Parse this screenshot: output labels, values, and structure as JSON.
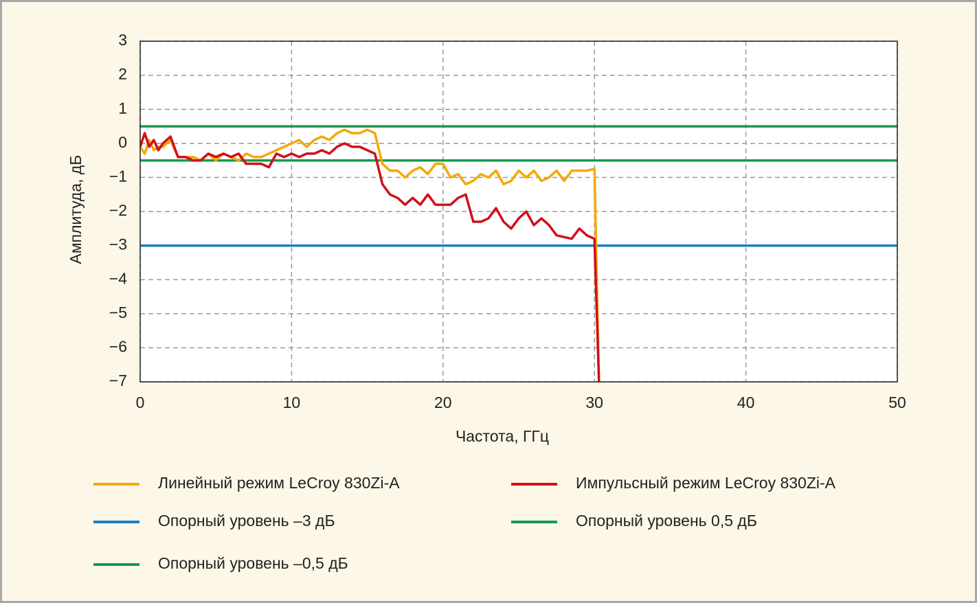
{
  "chart_data": {
    "type": "line",
    "xlabel": "Частота, ГГц",
    "ylabel": "Амплитуда, дБ",
    "xlim": [
      0,
      50
    ],
    "xticks": [
      0,
      10,
      20,
      30,
      40,
      50
    ],
    "ylim": [
      -7,
      3
    ],
    "yticks": [
      3,
      2,
      1,
      0,
      {
        "value": -1,
        "label": "−1"
      },
      {
        "value": -2,
        "label": "−2"
      },
      {
        "value": -3,
        "label": "−3"
      },
      {
        "value": -4,
        "label": "−4"
      },
      {
        "value": -5,
        "label": "−5"
      },
      {
        "value": -6,
        "label": "−6"
      },
      {
        "value": -7,
        "label": "−7"
      }
    ],
    "grid": true,
    "series": [
      {
        "name": "Линейный режим LeCroy 830Zi-A",
        "color": "#f5a800",
        "x": [
          0,
          0.3,
          0.6,
          0.9,
          1.2,
          1.5,
          2,
          2.5,
          3,
          3.5,
          4,
          4.5,
          5,
          5.5,
          6,
          6.5,
          7,
          7.5,
          8,
          8.5,
          9,
          9.5,
          10,
          10.5,
          11,
          11.5,
          12,
          12.5,
          13,
          13.5,
          14,
          14.5,
          15,
          15.5,
          16,
          16.5,
          17,
          17.5,
          18,
          18.5,
          19,
          19.5,
          20,
          20.5,
          21,
          21.5,
          22,
          22.5,
          23,
          23.5,
          24,
          24.5,
          25,
          25.5,
          26,
          26.5,
          27,
          27.5,
          28,
          28.5,
          29,
          29.5,
          30,
          30.3
        ],
        "values": [
          -0.1,
          -0.3,
          0.1,
          -0.2,
          -0.1,
          -0.1,
          0.1,
          -0.4,
          -0.4,
          -0.4,
          -0.5,
          -0.3,
          -0.5,
          -0.3,
          -0.4,
          -0.5,
          -0.3,
          -0.4,
          -0.4,
          -0.3,
          -0.2,
          -0.1,
          0,
          0.1,
          -0.1,
          0.1,
          0.2,
          0.1,
          0.3,
          0.4,
          0.3,
          0.3,
          0.4,
          0.3,
          -0.6,
          -0.8,
          -0.8,
          -1,
          -0.8,
          -0.7,
          -0.9,
          -0.6,
          -0.6,
          -1,
          -0.9,
          -1.2,
          -1.1,
          -0.9,
          -1,
          -0.8,
          -1.2,
          -1.1,
          -0.8,
          -1,
          -0.8,
          -1.1,
          -1,
          -0.8,
          -1.1,
          -0.8,
          -0.8,
          -0.8,
          -0.75,
          -7
        ]
      },
      {
        "name": "Импульсный режим LeCroy 830Zi-A",
        "color": "#d0101a",
        "x": [
          0,
          0.3,
          0.6,
          0.9,
          1.2,
          1.5,
          2,
          2.5,
          3,
          3.5,
          4,
          4.5,
          5,
          5.5,
          6,
          6.5,
          7,
          7.5,
          8,
          8.5,
          9,
          9.5,
          10,
          10.5,
          11,
          11.5,
          12,
          12.5,
          13,
          13.5,
          14,
          14.5,
          15,
          15.5,
          16,
          16.5,
          17,
          17.5,
          18,
          18.5,
          19,
          19.5,
          20,
          20.5,
          21,
          21.5,
          22,
          22.5,
          23,
          23.5,
          24,
          24.5,
          25,
          25.5,
          26,
          26.5,
          27,
          27.5,
          28,
          28.5,
          29,
          29.5,
          30,
          30.3
        ],
        "values": [
          -0.1,
          0.3,
          -0.1,
          0.1,
          -0.2,
          0,
          0.2,
          -0.4,
          -0.4,
          -0.5,
          -0.5,
          -0.3,
          -0.4,
          -0.3,
          -0.4,
          -0.3,
          -0.6,
          -0.6,
          -0.6,
          -0.7,
          -0.3,
          -0.4,
          -0.3,
          -0.4,
          -0.3,
          -0.3,
          -0.2,
          -0.3,
          -0.1,
          0,
          -0.1,
          -0.1,
          -0.2,
          -0.3,
          -1.2,
          -1.5,
          -1.6,
          -1.8,
          -1.6,
          -1.8,
          -1.5,
          -1.8,
          -1.8,
          -1.8,
          -1.6,
          -1.5,
          -2.3,
          -2.3,
          -2.2,
          -1.9,
          -2.3,
          -2.5,
          -2.2,
          -2,
          -2.4,
          -2.2,
          -2.4,
          -2.7,
          -2.75,
          -2.8,
          -2.5,
          -2.7,
          -2.8,
          -7
        ]
      },
      {
        "name": "Опорный уровень –3 дБ",
        "color": "#1a7fc4",
        "x": [
          0,
          50
        ],
        "values": [
          -3,
          -3
        ]
      },
      {
        "name": "Опорный уровень 0,5 дБ",
        "color": "#159a4e",
        "x": [
          0,
          50
        ],
        "values": [
          0.5,
          0.5
        ]
      },
      {
        "name": "Опорный уровень –0,5 дБ",
        "color": "#159a4e",
        "x": [
          0,
          50
        ],
        "values": [
          -0.5,
          -0.5
        ]
      }
    ]
  }
}
